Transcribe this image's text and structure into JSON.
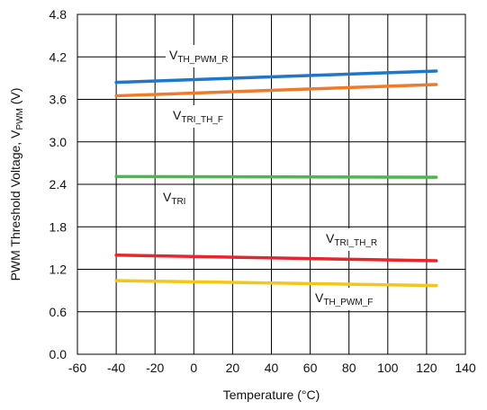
{
  "chart_data": {
    "type": "line",
    "xlabel": "Temperature (°C)",
    "ylabel": {
      "main": "PWM Threshold Voltage, V",
      "sub": "PWM",
      "unit": " (V)"
    },
    "xlim": [
      -60,
      140
    ],
    "ylim": [
      0.0,
      4.8
    ],
    "x_ticks": [
      "-60",
      "-40",
      "-20",
      "0",
      "20",
      "40",
      "60",
      "80",
      "100",
      "120",
      "140"
    ],
    "y_ticks": [
      "0.0",
      "0.6",
      "1.2",
      "1.8",
      "2.4",
      "3.0",
      "3.6",
      "4.2",
      "4.8"
    ],
    "grid": true,
    "x": [
      -40,
      125
    ],
    "series": [
      {
        "name": "V_TH_PWM_R",
        "label_main": "V",
        "label_sub": "TH_PWM_R",
        "color": "#1f77c9",
        "values": [
          3.84,
          4.0
        ]
      },
      {
        "name": "V_TRI_TH_F",
        "label_main": "V",
        "label_sub": "TRI_TH_F",
        "color": "#f07a2a",
        "values": [
          3.65,
          3.81
        ]
      },
      {
        "name": "V_TRI",
        "label_main": "V",
        "label_sub": "TRI",
        "color": "#4cb84c",
        "values": [
          2.51,
          2.5
        ]
      },
      {
        "name": "V_TRI_TH_R",
        "label_main": "V",
        "label_sub": "TRI_TH_R",
        "color": "#e8252a",
        "values": [
          1.4,
          1.32
        ]
      },
      {
        "name": "V_TH_PWM_F",
        "label_main": "V",
        "label_sub": "TH_PWM_F",
        "color": "#f5c518",
        "values": [
          1.04,
          0.97
        ]
      }
    ]
  }
}
